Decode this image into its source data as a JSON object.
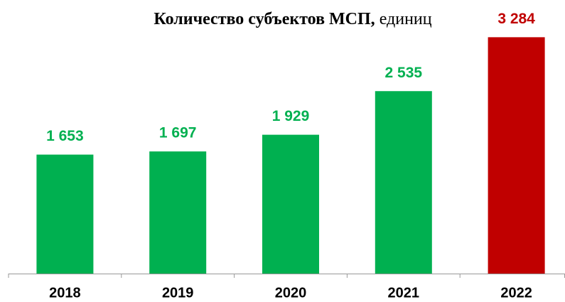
{
  "chart_data": {
    "type": "bar",
    "title": "Количество субъектов МСП,",
    "subtitle": "единиц",
    "categories": [
      "2018",
      "2019",
      "2020",
      "2021",
      "2022"
    ],
    "values": [
      1653,
      1697,
      1929,
      2535,
      3284
    ],
    "value_labels": [
      "1 653",
      "1 697",
      "1 929",
      "2 535",
      "3 284"
    ],
    "colors": [
      "#00b050",
      "#00b050",
      "#00b050",
      "#00b050",
      "#c00000"
    ],
    "ylim": [
      0,
      3500
    ]
  }
}
